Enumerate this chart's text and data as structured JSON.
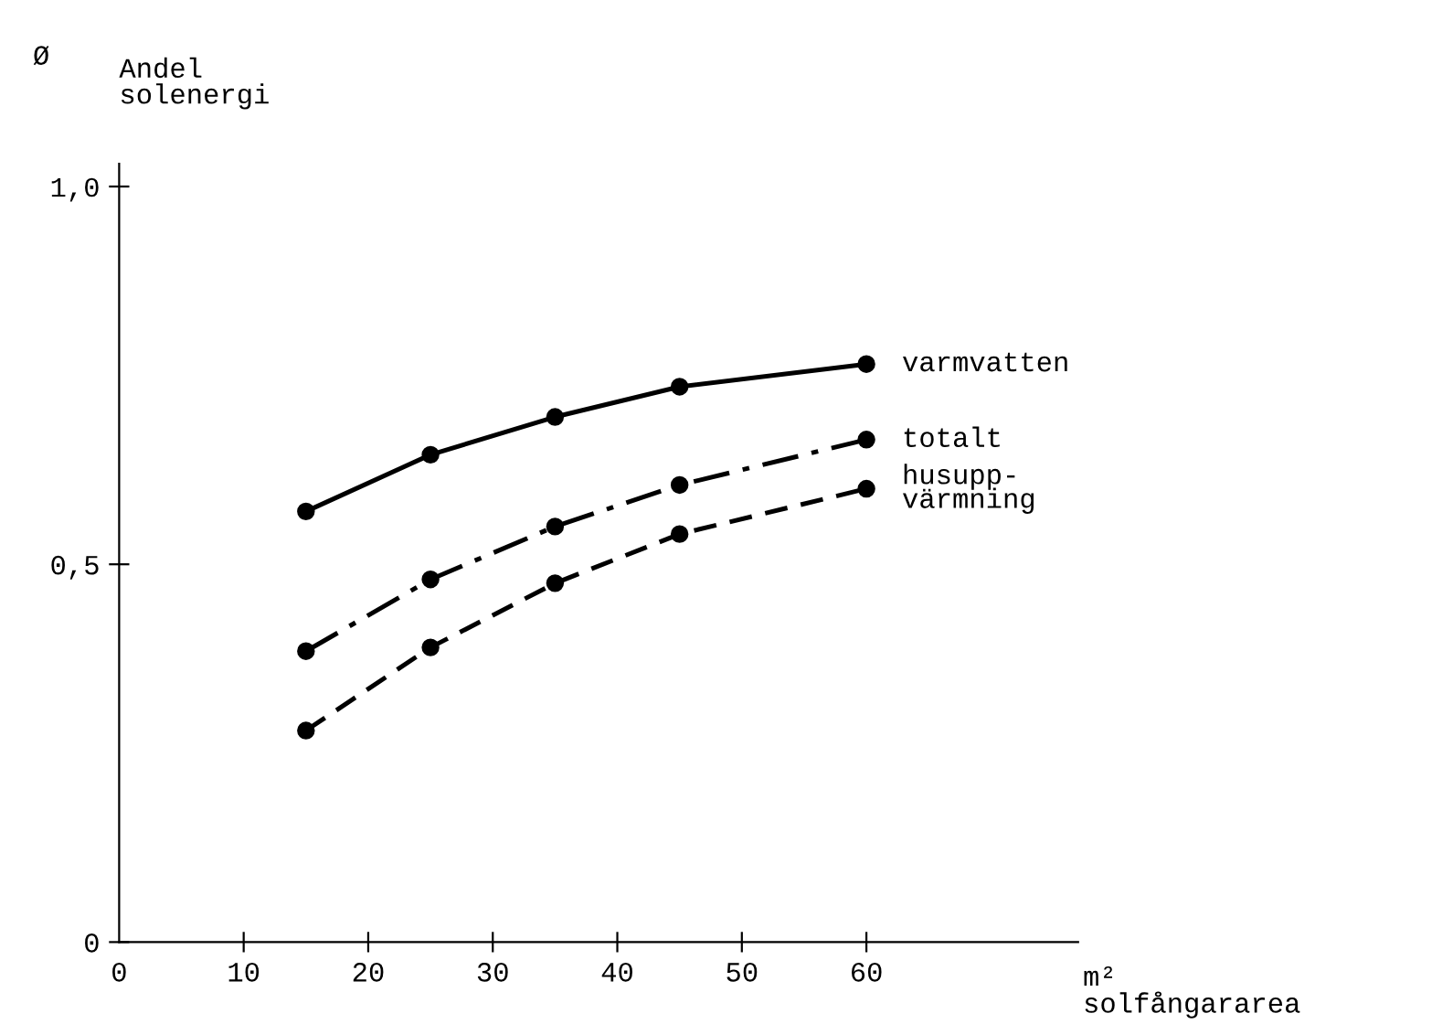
{
  "chart_data": {
    "type": "line",
    "xlabel": "m²\nsolfångararea",
    "ylabel": "Andel\nsolenergi",
    "annotations": [
      "Ø"
    ],
    "x": [
      15,
      25,
      35,
      45,
      60
    ],
    "series": [
      {
        "name": "varmvatten",
        "color": "#000000",
        "line_style": "solid",
        "values": [
          0.57,
          0.645,
          0.695,
          0.735,
          0.765
        ]
      },
      {
        "name": "totalt",
        "color": "#000000",
        "line_style": "dashdot",
        "values": [
          0.385,
          0.48,
          0.55,
          0.605,
          0.665
        ]
      },
      {
        "name": "husupp-\nvärmning",
        "color": "#000000",
        "line_style": "dashed",
        "values": [
          0.28,
          0.39,
          0.475,
          0.54,
          0.6
        ]
      }
    ],
    "marker": "circle",
    "grid": false,
    "legend": false,
    "xlim": [
      0,
      77
    ],
    "xticks": [
      0,
      10,
      20,
      30,
      40,
      50,
      60
    ],
    "ylim": [
      0,
      1.03
    ],
    "yticks": [
      0,
      {
        "value": 0.5,
        "label": "0,5"
      },
      {
        "value": 1.0,
        "label": "1,0"
      }
    ]
  }
}
